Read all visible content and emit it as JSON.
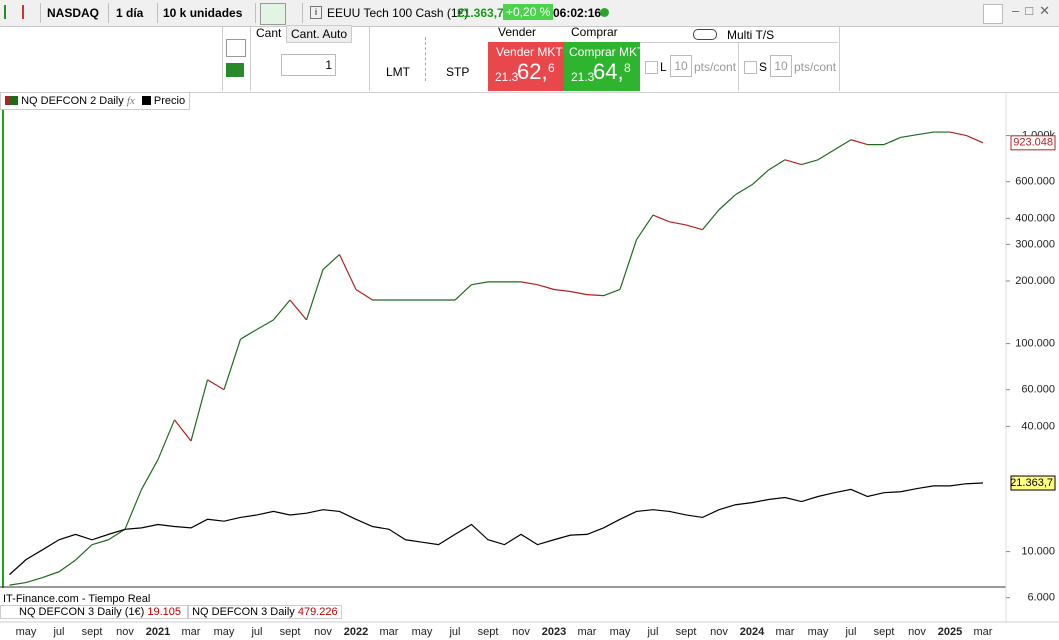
{
  "toolbar": {
    "market": "NASDAQ",
    "timeframe": "1 día",
    "units": "10 k unidades",
    "instrument": "EEUU Tech 100 Cash (1€)",
    "price": "21.363,7",
    "change": "+0,20 %",
    "time": "06:02:16"
  },
  "order_panel": {
    "qty_tab": "Cant",
    "auto_tab": "Cant. Auto",
    "qty": "1",
    "lmt": "LMT",
    "stp": "STP",
    "sell_title": "Vender",
    "buy_title": "Comprar",
    "sell_button": "Vender MKT",
    "buy_button": "Comprar MKT",
    "sell_prefix": "21.3",
    "sell_big": "62,",
    "sell_small": "6",
    "buy_prefix": "21.3",
    "buy_big": "64,",
    "buy_small": "8",
    "multi": "Multi T/S",
    "l_label": "L",
    "l_value": "10",
    "l_unit": "pts/cont",
    "s_label": "S",
    "s_value": "10",
    "s_unit": "pts/cont"
  },
  "footer": {
    "source": "IT-Finance.com - Tiempo Real",
    "panel1_name": "NQ DEFCON 3 Daily (1€)",
    "panel1_value": "19.105",
    "panel2_name": "NQ DEFCON 3 Daily",
    "panel2_value": "479.226"
  },
  "chart_data": {
    "type": "line",
    "log_scale": true,
    "categories": [
      null,
      "may",
      null,
      "jul",
      null,
      "sept",
      null,
      "nov",
      null,
      "2021",
      null,
      "mar",
      null,
      "may",
      null,
      "jul",
      null,
      "sept",
      null,
      "nov",
      null,
      "2022",
      null,
      "mar",
      null,
      "may",
      null,
      "jul",
      null,
      "sept",
      null,
      "nov",
      null,
      "2023",
      null,
      "mar",
      null,
      "may",
      null,
      "jul",
      null,
      "sept",
      null,
      "nov",
      null,
      "2024",
      null,
      "mar",
      null,
      "may",
      null,
      "jul",
      null,
      "sept",
      null,
      "nov",
      null,
      "2025",
      null,
      "mar"
    ],
    "series": [
      {
        "name": "NQ DEFCON 2 Daily",
        "color": "#1e6b1e",
        "down_color": "#b22222",
        "end_label": "923.048",
        "values": [
          6900,
          7100,
          7500,
          8000,
          9100,
          10800,
          11400,
          12800,
          19900,
          27700,
          43000,
          34000,
          67000,
          60000,
          105000,
          117000,
          130000,
          162000,
          130000,
          227000,
          268000,
          182000,
          162000,
          162000,
          162000,
          162000,
          162000,
          162000,
          192000,
          198000,
          198000,
          198000,
          192000,
          182000,
          178000,
          172000,
          170000,
          182000,
          316000,
          415000,
          385000,
          372000,
          353000,
          440000,
          520000,
          580000,
          683000,
          765000,
          726000,
          765000,
          855000,
          955000,
          905000,
          905000,
          980000,
          1010000,
          1040000,
          1040000,
          1000000,
          923048
        ]
      },
      {
        "name": "Precio",
        "color": "#000000",
        "end_label": "21.363,7",
        "values": [
          7750,
          9150,
          10200,
          11400,
          12100,
          11400,
          12100,
          12800,
          13000,
          13500,
          13200,
          13000,
          14300,
          14000,
          14600,
          15000,
          15600,
          15000,
          15300,
          15900,
          15600,
          14300,
          13200,
          12800,
          11400,
          11100,
          10800,
          12100,
          13500,
          11400,
          10800,
          12100,
          10800,
          11400,
          12000,
          12100,
          13000,
          14300,
          15600,
          15900,
          15600,
          15000,
          14600,
          15900,
          16800,
          17200,
          17800,
          18200,
          17400,
          18400,
          19200,
          19900,
          18400,
          19200,
          19400,
          20100,
          20700,
          20700,
          21200,
          21363.7
        ]
      }
    ],
    "ylim": [
      5500,
      1550000
    ],
    "yticks": [
      {
        "value": 6000,
        "label": "6.000"
      },
      {
        "value": 10000,
        "label": "10.000"
      },
      {
        "value": 40000,
        "label": "40.000"
      },
      {
        "value": 60000,
        "label": "60.000"
      },
      {
        "value": 100000,
        "label": "100.000"
      },
      {
        "value": 200000,
        "label": "200.000"
      },
      {
        "value": 300000,
        "label": "300.000"
      },
      {
        "value": 400000,
        "label": "400.000"
      },
      {
        "value": 600000,
        "label": "600.000"
      },
      {
        "value": 1000000,
        "label": "1.000k"
      }
    ]
  }
}
